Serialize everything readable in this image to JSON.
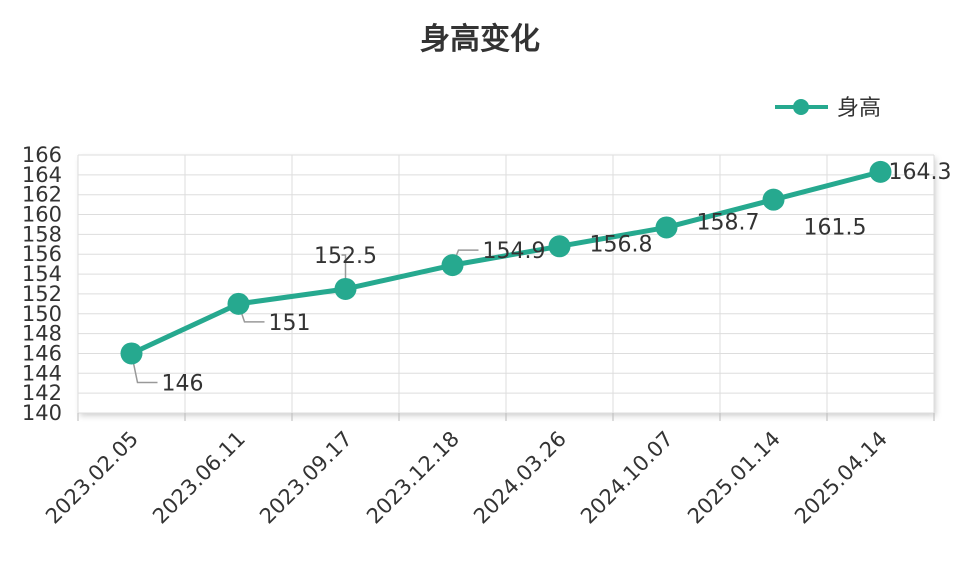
{
  "chart_data": {
    "type": "line",
    "title": "身高变化",
    "categories": [
      "2023.02.05",
      "2023.06.11",
      "2023.09.17",
      "2023.12.18",
      "2024.03.26",
      "2024.10.07",
      "2025.01.14",
      "2025.04.14"
    ],
    "series": [
      {
        "name": "身高",
        "values": [
          146,
          151,
          152.5,
          154.9,
          156.8,
          158.7,
          161.5,
          164.3
        ]
      }
    ],
    "data_labels": [
      "146",
      "151",
      "152.5",
      "154.9",
      "156.8",
      "158.7",
      "161.5",
      "164.3"
    ],
    "ylim": [
      140,
      166
    ],
    "y_ticks": [
      "140",
      "142",
      "144",
      "146",
      "148",
      "150",
      "152",
      "154",
      "156",
      "158",
      "160",
      "162",
      "164",
      "166"
    ],
    "grid": true,
    "legend": "top-right",
    "colors": {
      "series": "#26a98f",
      "grid": "#dddddd",
      "text": "#333333"
    }
  }
}
